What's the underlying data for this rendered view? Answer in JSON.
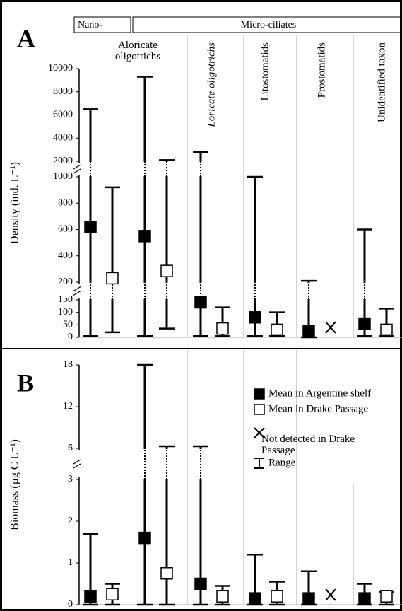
{
  "header": {
    "nano": "Nano-",
    "micro": "Micro-ciliates",
    "groups": [
      "Aloricate oligotrichs",
      "Loricate oligotrichs",
      "Litostomatids",
      "Prostomatids",
      "Unidentified taxon"
    ]
  },
  "legend": {
    "not_detected": "Not detected in Drake Passage",
    "range": "Range"
  },
  "chart_data": [
    {
      "type": "range",
      "panel_label": "A",
      "y_label": "Density (ind. L⁻¹)",
      "segments": [
        {
          "ylim": [
            0,
            150
          ],
          "yticks": [
            0,
            50,
            100,
            150
          ]
        },
        {
          "ylim": [
            200,
            1000
          ],
          "yticks": [
            200,
            400,
            600,
            800,
            1000
          ]
        },
        {
          "ylim": [
            2000,
            10000
          ],
          "yticks": [
            2000,
            4000,
            6000,
            8000,
            10000
          ]
        }
      ],
      "series": [
        {
          "color": "#000000",
          "values": [
            620,
            550,
            140,
            80,
            25,
            55
          ],
          "min": [
            5,
            5,
            5,
            5,
            0,
            5
          ],
          "max": [
            6500,
            9300,
            2800,
            1000,
            210,
            600
          ]
        },
        {
          "color": "#ffffff",
          "values": [
            230,
            285,
            35,
            30,
            null,
            30
          ],
          "min": [
            20,
            35,
            5,
            5,
            null,
            5
          ],
          "max": [
            920,
            2100,
            120,
            100,
            null,
            115
          ]
        }
      ]
    },
    {
      "type": "range",
      "panel_label": "B",
      "y_label": "Biomass (µg C L⁻¹)",
      "legend": "upper right",
      "segments": [
        {
          "ylim": [
            0,
            3
          ],
          "yticks": [
            0,
            1,
            2,
            3
          ]
        },
        {
          "ylim": [
            6,
            18
          ],
          "yticks": [
            6,
            12,
            18
          ]
        }
      ],
      "series": [
        {
          "name": "Mean in Argentine shelf",
          "color": "#000000",
          "values": [
            0.2,
            1.6,
            0.5,
            0.15,
            0.15,
            0.15
          ],
          "min": [
            0,
            0,
            0,
            0,
            0,
            0
          ],
          "max": [
            1.7,
            18,
            6.3,
            1.2,
            0.8,
            0.5
          ]
        },
        {
          "name": "Mean in Drake Passage",
          "color": "#ffffff",
          "values": [
            0.25,
            0.75,
            0.2,
            0.2,
            null,
            0.2
          ],
          "min": [
            0,
            0,
            0,
            0,
            null,
            0
          ],
          "max": [
            0.5,
            6.3,
            0.45,
            0.55,
            null,
            0.3
          ]
        }
      ]
    }
  ]
}
